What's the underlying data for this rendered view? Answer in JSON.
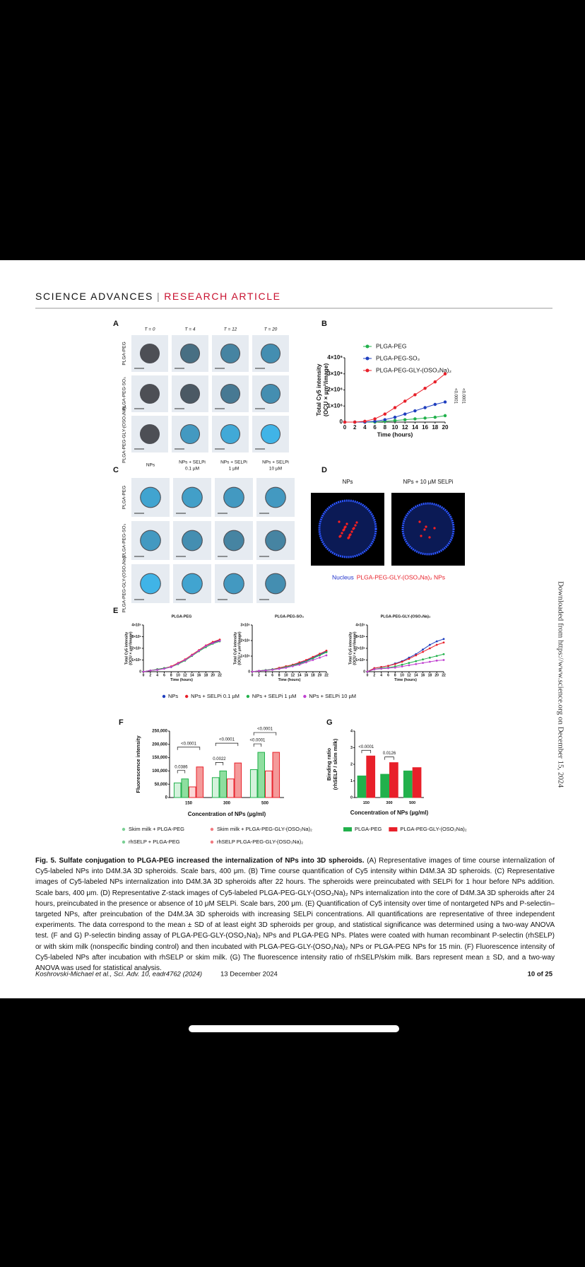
{
  "header": {
    "journal": "SCIENCE ADVANCES",
    "separator": "|",
    "section": "RESEARCH ARTICLE"
  },
  "figure": {
    "panel_a": {
      "label": "A",
      "columns": [
        "T = 0",
        "T = 4",
        "T = 12",
        "T = 20"
      ],
      "rows": [
        "PLGA-PEG",
        "PLGA-PEG-SO₃",
        "PLGA-PEG-GLY-(OSO₃Na)₂"
      ]
    },
    "panel_b": {
      "label": "B",
      "chart": {
        "type": "line",
        "x": [
          0,
          2,
          4,
          6,
          8,
          10,
          12,
          14,
          16,
          18,
          20
        ],
        "xlim": [
          0,
          20
        ],
        "xticks": [
          0,
          2,
          4,
          6,
          8,
          10,
          12,
          14,
          16,
          18,
          20
        ],
        "ylim": [
          0,
          4000000
        ],
        "yticks": [
          0,
          {
            "value": 1000000,
            "label": "1×10⁶"
          },
          {
            "value": 2000000,
            "label": "2×10⁶"
          },
          {
            "value": 3000000,
            "label": "3×10⁶"
          },
          {
            "value": 4000000,
            "label": "4×10⁶"
          }
        ],
        "xlabel": "Time (hours)",
        "ylabel": [
          "Total Cy5 intensity",
          "(OCU × µm²/image)"
        ],
        "series": [
          {
            "name": "PLGA-PEG",
            "color": "#22b14c",
            "values": [
              0,
              0,
              0,
              0,
              50000,
              100000,
              150000,
              200000,
              250000,
              300000,
              400000
            ]
          },
          {
            "name": "PLGA-PEG-SO₃",
            "color": "#1f3fbf",
            "values": [
              0,
              0,
              0,
              50000,
              150000,
              300000,
              500000,
              700000,
              900000,
              1100000,
              1250000
            ]
          },
          {
            "name": "PLGA-PEG-GLY-(OSO₃Na)₂",
            "color": "#e8202a",
            "values": [
              0,
              0,
              50000,
              200000,
              500000,
              900000,
              1300000,
              1700000,
              2100000,
              2500000,
              3000000
            ]
          }
        ],
        "annotations": [
          "<0.0001",
          "<0.0001"
        ]
      }
    },
    "panel_c": {
      "label": "C",
      "columns": [
        [
          "NPs"
        ],
        [
          "NPs + SELPi",
          "0.1 µM"
        ],
        [
          "NPs + SELPi",
          "1 µM"
        ],
        [
          "NPs + SELPi",
          "10 µM"
        ]
      ],
      "rows": [
        "PLGA-PEG",
        "PLGA-PEG-SO₃",
        "PLGA-PEG-GLY-(OSO₃Na)₂"
      ]
    },
    "panel_d": {
      "label": "D",
      "columns": [
        "NPs",
        "NPs + 10 µM SELPi"
      ],
      "legend": [
        {
          "text": "Nucleus",
          "color": "#2233cc"
        },
        {
          "text": "PLGA-PEG-GLY-(OSO₃Na)₂ NPs",
          "color": "#e8202a"
        }
      ]
    },
    "panel_e": {
      "label": "E",
      "legend": [
        {
          "name": "NPs",
          "color": "#1f3fbf"
        },
        {
          "name": "NPs + SELPi 0.1 µM",
          "color": "#e8202a"
        },
        {
          "name": "NPs + SELPi 1 µM",
          "color": "#22b14c"
        },
        {
          "name": "NPs + SELPi 10 µM",
          "color": "#c040d0"
        }
      ],
      "charts": [
        {
          "type": "line",
          "title": "PLGA-PEG",
          "x": [
            0,
            2,
            4,
            6,
            8,
            10,
            12,
            14,
            16,
            18,
            20,
            22
          ],
          "xlim": [
            0,
            22
          ],
          "xticks": [
            0,
            2,
            4,
            6,
            8,
            10,
            12,
            14,
            16,
            18,
            20,
            22
          ],
          "ylim": [
            0,
            4000000
          ],
          "yticks": [
            0,
            {
              "value": 1000000,
              "label": "1×10⁶"
            },
            {
              "value": 2000000,
              "label": "2×10⁶"
            },
            {
              "value": 3000000,
              "label": "3×10⁶"
            },
            {
              "value": 4000000,
              "label": "4×10⁶"
            }
          ],
          "xlabel": "Time (hours)",
          "ylabel": [
            "Total Cy5 intensity",
            "(OCU × µm²/image)"
          ],
          "series": [
            {
              "values": [
                0,
                100000,
                200000,
                300000,
                400000,
                700000,
                1000000,
                1400000,
                1800000,
                2200000,
                2500000,
                2700000
              ]
            },
            {
              "values": [
                0,
                100000,
                200000,
                300000,
                450000,
                750000,
                1050000,
                1450000,
                1850000,
                2250000,
                2550000,
                2750000
              ]
            },
            {
              "values": [
                0,
                100000,
                200000,
                300000,
                400000,
                650000,
                950000,
                1350000,
                1750000,
                2100000,
                2400000,
                2600000
              ]
            },
            {
              "values": [
                0,
                100000,
                150000,
                250000,
                400000,
                700000,
                1000000,
                1400000,
                1800000,
                2200000,
                2450000,
                2650000
              ]
            }
          ]
        },
        {
          "type": "line",
          "title": "PLGA-PEG-SO₃",
          "x": [
            0,
            2,
            4,
            6,
            8,
            10,
            12,
            14,
            16,
            18,
            20,
            22
          ],
          "xlim": [
            0,
            22
          ],
          "xticks": [
            0,
            2,
            4,
            6,
            8,
            10,
            12,
            14,
            16,
            18,
            20,
            22
          ],
          "ylim": [
            0,
            3000000
          ],
          "yticks": [
            0,
            {
              "value": 1000000,
              "label": "1×10⁶"
            },
            {
              "value": 2000000,
              "label": "2×10⁶"
            },
            {
              "value": 3000000,
              "label": "3×10⁶"
            }
          ],
          "xlabel": "Time (hours)",
          "ylabel": [
            "Total Cy5 intensity",
            "(OCU × µm²/image)"
          ],
          "series": [
            {
              "values": [
                0,
                50000,
                100000,
                150000,
                200000,
                300000,
                400000,
                550000,
                700000,
                900000,
                1100000,
                1300000
              ]
            },
            {
              "values": [
                0,
                50000,
                100000,
                150000,
                250000,
                350000,
                450000,
                600000,
                750000,
                950000,
                1150000,
                1350000
              ]
            },
            {
              "values": [
                0,
                50000,
                100000,
                150000,
                200000,
                300000,
                400000,
                500000,
                650000,
                850000,
                1050000,
                1250000
              ]
            },
            {
              "values": [
                0,
                50000,
                80000,
                120000,
                180000,
                250000,
                350000,
                450000,
                600000,
                750000,
                900000,
                1050000
              ]
            }
          ]
        },
        {
          "type": "line",
          "title": "PLGA-PEG-GLY-(OSO₃Na)₂",
          "x": [
            0,
            2,
            4,
            6,
            8,
            10,
            12,
            14,
            16,
            18,
            20,
            22
          ],
          "xlim": [
            0,
            22
          ],
          "xticks": [
            0,
            2,
            4,
            6,
            8,
            10,
            12,
            14,
            16,
            18,
            20,
            22
          ],
          "ylim": [
            0,
            4000000
          ],
          "yticks": [
            0,
            {
              "value": 1000000,
              "label": "1×10⁶"
            },
            {
              "value": 2000000,
              "label": "2×10⁶"
            },
            {
              "value": 3000000,
              "label": "3×10⁶"
            },
            {
              "value": 4000000,
              "label": "4×10⁶"
            }
          ],
          "xlabel": "Time (hours)",
          "ylabel": [
            "Total Cy5 intensity",
            "(OCU × µm²/image)"
          ],
          "series": [
            {
              "values": [
                0,
                300000,
                400000,
                500000,
                700000,
                900000,
                1200000,
                1500000,
                1900000,
                2300000,
                2600000,
                2800000
              ]
            },
            {
              "values": [
                0,
                300000,
                400000,
                500000,
                650000,
                850000,
                1100000,
                1400000,
                1700000,
                2000000,
                2300000,
                2500000
              ]
            },
            {
              "values": [
                0,
                200000,
                300000,
                350000,
                450000,
                600000,
                750000,
                900000,
                1050000,
                1200000,
                1350000,
                1500000
              ]
            },
            {
              "values": [
                0,
                200000,
                250000,
                300000,
                350000,
                450000,
                550000,
                650000,
                750000,
                850000,
                950000,
                1000000
              ]
            }
          ]
        }
      ]
    },
    "panel_f": {
      "label": "F",
      "chart": {
        "type": "bar",
        "categories": [
          "150",
          "300",
          "500"
        ],
        "ylim": [
          0,
          250000
        ],
        "yticks": [
          0,
          {
            "value": 50000,
            "label": "50,000"
          },
          {
            "value": 100000,
            "label": "100,000"
          },
          {
            "value": 150000,
            "label": "150,000"
          },
          {
            "value": 200000,
            "label": "200,000"
          },
          {
            "value": 250000,
            "label": "250,000"
          }
        ],
        "ylabel": "Fluorescence intensity",
        "xlabel": "Concentration of NPs (µg/ml)",
        "series": [
          {
            "name": "Skim milk + PLGA-PEG",
            "color": "#22b14c",
            "fill": "#d4f2dc",
            "values": [
              55000,
              75000,
              105000
            ]
          },
          {
            "name": "rhSELP + PLGA-PEG",
            "color": "#22b14c",
            "fill": "#8ede9f",
            "values": [
              70000,
              100000,
              170000
            ]
          },
          {
            "name": "Skim milk + PLGA-PEG-GLY-(OSO₃Na)₂",
            "color": "#e8202a",
            "fill": "#fbd6d6",
            "values": [
              40000,
              70000,
              100000
            ]
          },
          {
            "name": "rhSELP PLGA-PEG-GLY-(OSO₃Na)₂",
            "color": "#e8202a",
            "fill": "#f49a9a",
            "values": [
              115000,
              130000,
              170000
            ]
          }
        ],
        "annotations": [
          "0.0386",
          "<0.0001",
          "0.0022",
          "<0.0001",
          "<0.0001",
          "<0.0001"
        ]
      }
    },
    "panel_g": {
      "label": "G",
      "chart": {
        "type": "bar",
        "categories": [
          "150",
          "300",
          "500"
        ],
        "ylim": [
          0,
          4
        ],
        "yticks": [
          0,
          1,
          2,
          3,
          4
        ],
        "ylabel": [
          "Binding ratio",
          "(rhSELP / skim milk)"
        ],
        "xlabel": "Concentration of NPs (µg/ml)",
        "series": [
          {
            "name": "PLGA-PEG",
            "color": "#22b14c",
            "fill": "#22b14c",
            "values": [
              1.3,
              1.4,
              1.6
            ]
          },
          {
            "name": "PLGA-PEG-GLY-(OSO₃Na)₂",
            "color": "#e8202a",
            "fill": "#e8202a",
            "values": [
              2.5,
              2.1,
              1.8
            ]
          }
        ],
        "annotations": [
          "<0.0001",
          "0.0126"
        ]
      }
    }
  },
  "caption": {
    "title": "Fig. 5. Sulfate conjugation to PLGA-PEG increased the internalization of NPs into 3D spheroids.",
    "body": "(A) Representative images of time course internalization of Cy5-labeled NPs into D4M.3A 3D spheroids. Scale bars, 400 μm. (B) Time course quantification of Cy5 intensity within D4M.3A 3D spheroids. (C) Representative images of Cy5-labeled NPs internalization into D4M.3A 3D spheroids after 22 hours. The spheroids were preincubated with SELPi for 1 hour before NPs addition. Scale bars, 400 μm. (D) Representative Z-stack images of Cy5-labeled PLGA-PEG-GLY-(OSO₃Na)₂ NPs internalization into the core of D4M.3A 3D spheroids after 24 hours, preincubated in the presence or absence of 10 μM SELPi. Scale bars, 200 μm. (E) Quantification of Cy5 intensity over time of nontargeted NPs and P-selectin–targeted NPs, after preincubation of the D4M.3A 3D spheroids with increasing SELPi concentrations. All quantifications are representative of three independent experiments. The data correspond to the mean ± SD of at least eight 3D spheroids per group, and statistical significance was determined using a two-way ANOVA test. (F and G) P-selectin binding assay of PLGA-PEG-GLY-(OSO₃Na)₂ NPs and PLGA-PEG NPs. Plates were coated with human recombinant P-selectin (rhSELP) or with skim milk (nonspecific binding control) and then incubated with PLGA-PEG-GLY-(OSO₃Na)₂ NPs or PLGA-PEG NPs for 15 min. (F) Fluorescence intensity of Cy5-labeled NPs after incubation with rhSELP or skim milk. (G) The fluorescence intensity ratio of rhSELP/skim milk. Bars represent mean ± SD, and a two-way ANOVA was used for statistical analysis."
  },
  "footer": {
    "citation": "Koshrovski-Michael et al., Sci. Adv. 10, eadr4762 (2024)",
    "date": "13 December 2024",
    "page": "10 of 25"
  },
  "side_note": "Downloaded from https://www.science.org on December 15, 2024"
}
